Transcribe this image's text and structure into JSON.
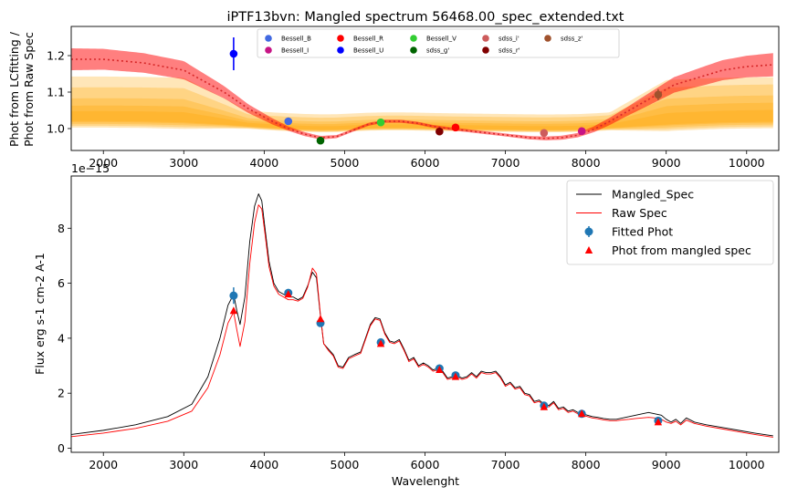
{
  "chart_data": [
    {
      "type": "line",
      "title": "iPTF13bvn: Mangled spectrum 56468.00_spec_extended.txt",
      "ylabel_lines": [
        "Phot from LCfitting /",
        "Phot from Raw Spec"
      ],
      "xlabel": "",
      "xlim": [
        1600,
        10400
      ],
      "ylim": [
        0.94,
        1.28
      ],
      "x_ticks": [
        2000,
        3000,
        4000,
        5000,
        6000,
        7000,
        8000,
        9000,
        10000
      ],
      "y_ticks": [
        1.0,
        1.1,
        1.2
      ],
      "y_tick_labels": [
        "1.0",
        "1.1",
        "1.2"
      ],
      "grid": false,
      "legend_position": "top-center",
      "band_color": "#ffa500",
      "main_band_color": "#ff0000",
      "mean_line_color": "#d62728",
      "mean_curve": {
        "x": [
          1600,
          2000,
          2500,
          3000,
          3500,
          3800,
          4100,
          4300,
          4500,
          4700,
          4900,
          5100,
          5300,
          5500,
          5700,
          5900,
          6100,
          6300,
          6500,
          6700,
          6900,
          7100,
          7300,
          7500,
          7700,
          7900,
          8100,
          8300,
          8500,
          8700,
          8900,
          9100,
          9400,
          9700,
          10000,
          10330
        ],
        "y": [
          1.19,
          1.19,
          1.18,
          1.16,
          1.1,
          1.055,
          1.02,
          1.0,
          0.985,
          0.975,
          0.978,
          0.995,
          1.012,
          1.02,
          1.02,
          1.015,
          1.006,
          1.0,
          0.995,
          0.99,
          0.985,
          0.98,
          0.975,
          0.973,
          0.975,
          0.982,
          0.998,
          1.02,
          1.045,
          1.07,
          1.095,
          1.12,
          1.14,
          1.16,
          1.17,
          1.175
        ]
      },
      "main_band_halfwidth": {
        "x": [
          1600,
          3000,
          3800,
          4300,
          5000,
          6000,
          7000,
          7900,
          8500,
          9000,
          9500,
          10330
        ],
        "w": [
          0.03,
          0.025,
          0.012,
          0.006,
          0.004,
          0.004,
          0.004,
          0.006,
          0.012,
          0.02,
          0.026,
          0.032
        ]
      },
      "spread_bands": [
        {
          "upper_left": 1.12,
          "lower_left": 0.98,
          "upper_right": 1.12,
          "lower_right": 0.98
        },
        {
          "upper_left": 1.09,
          "lower_left": 0.985,
          "upper_right": 1.1,
          "lower_right": 0.985
        },
        {
          "upper_left": 1.06,
          "lower_left": 0.99,
          "upper_right": 1.07,
          "lower_right": 0.99
        },
        {
          "upper_left": 1.04,
          "lower_left": 0.995,
          "upper_right": 1.05,
          "lower_right": 0.995
        },
        {
          "upper_left": 1.025,
          "lower_left": 0.998,
          "upper_right": 1.03,
          "lower_right": 0.998
        }
      ],
      "points": [
        {
          "name": "Bessell_B",
          "x": 4300,
          "y": 1.02,
          "color": "#4169e1"
        },
        {
          "name": "Bessell_I",
          "x": 7950,
          "y": 0.993,
          "color": "#c71585"
        },
        {
          "name": "Bessell_R",
          "x": 6380,
          "y": 1.003,
          "color": "#ff0000"
        },
        {
          "name": "Bessell_U",
          "x": 3620,
          "y": 1.205,
          "color": "#0000ff",
          "err": 0.045
        },
        {
          "name": "Bessell_V",
          "x": 5450,
          "y": 1.017,
          "color": "#32cd32"
        },
        {
          "name": "sdss_g'",
          "x": 4700,
          "y": 0.967,
          "color": "#006400"
        },
        {
          "name": "sdss_i'",
          "x": 7480,
          "y": 0.988,
          "color": "#cd5c5c"
        },
        {
          "name": "sdss_r'",
          "x": 6180,
          "y": 0.992,
          "color": "#800000"
        },
        {
          "name": "sdss_z'",
          "x": 8900,
          "y": 1.093,
          "color": "#a0522d",
          "err": 0.015
        }
      ],
      "legend_entries": [
        {
          "label": "Bessell_B",
          "color": "#4169e1"
        },
        {
          "label": "Bessell_R",
          "color": "#ff0000"
        },
        {
          "label": "Bessell_V",
          "color": "#32cd32"
        },
        {
          "label": "sdss_i'",
          "color": "#cd5c5c"
        },
        {
          "label": "sdss_z'",
          "color": "#a0522d"
        },
        {
          "label": "Bessell_I",
          "color": "#c71585"
        },
        {
          "label": "Bessell_U",
          "color": "#0000ff"
        },
        {
          "label": "sdss_g'",
          "color": "#006400"
        },
        {
          "label": "sdss_r'",
          "color": "#800000"
        }
      ]
    },
    {
      "type": "line",
      "title": "",
      "xlabel": "Wavelenght",
      "ylabel": "Flux erg s-1 cm-2 A-1",
      "offset_text": "1e−15",
      "xlim": [
        1600,
        10400
      ],
      "ylim": [
        -0.15,
        9.9
      ],
      "x_ticks": [
        2000,
        3000,
        4000,
        5000,
        6000,
        7000,
        8000,
        9000,
        10000
      ],
      "y_ticks": [
        0,
        2,
        4,
        6,
        8
      ],
      "grid": false,
      "legend_position": "top-right",
      "series": [
        {
          "name": "Mangled_Spec",
          "color": "#000000",
          "x": [
            1600,
            2000,
            2400,
            2800,
            3100,
            3300,
            3450,
            3550,
            3620,
            3660,
            3700,
            3760,
            3820,
            3880,
            3930,
            3970,
            4010,
            4060,
            4120,
            4180,
            4240,
            4300,
            4360,
            4420,
            4480,
            4540,
            4600,
            4650,
            4700,
            4740,
            4800,
            4860,
            4920,
            4980,
            5050,
            5120,
            5200,
            5260,
            5320,
            5380,
            5440,
            5500,
            5560,
            5620,
            5680,
            5740,
            5800,
            5860,
            5920,
            5980,
            6040,
            6100,
            6160,
            6220,
            6280,
            6340,
            6400,
            6460,
            6520,
            6580,
            6640,
            6700,
            6760,
            6820,
            6880,
            6940,
            7000,
            7060,
            7120,
            7180,
            7240,
            7300,
            7360,
            7420,
            7480,
            7540,
            7600,
            7660,
            7720,
            7780,
            7840,
            7900,
            7960,
            8020,
            8080,
            8150,
            8220,
            8300,
            8380,
            8460,
            8540,
            8620,
            8700,
            8780,
            8860,
            8940,
            9000,
            9060,
            9120,
            9180,
            9250,
            9350,
            9500,
            9700,
            9900,
            10100,
            10330
          ],
          "y": [
            0.5,
            0.65,
            0.85,
            1.15,
            1.6,
            2.6,
            4.0,
            5.2,
            5.6,
            5.0,
            4.5,
            5.5,
            7.5,
            8.8,
            9.25,
            9.0,
            8.0,
            6.8,
            6.0,
            5.7,
            5.6,
            5.5,
            5.5,
            5.4,
            5.5,
            5.9,
            6.4,
            6.2,
            4.8,
            3.8,
            3.6,
            3.4,
            3.0,
            2.95,
            3.3,
            3.4,
            3.5,
            4.0,
            4.5,
            4.75,
            4.7,
            4.2,
            3.9,
            3.85,
            3.95,
            3.6,
            3.2,
            3.3,
            3.0,
            3.1,
            3.0,
            2.85,
            2.9,
            2.8,
            2.55,
            2.6,
            2.65,
            2.55,
            2.6,
            2.75,
            2.6,
            2.8,
            2.75,
            2.75,
            2.8,
            2.6,
            2.3,
            2.4,
            2.2,
            2.25,
            2.0,
            1.95,
            1.7,
            1.75,
            1.6,
            1.55,
            1.7,
            1.45,
            1.5,
            1.35,
            1.4,
            1.3,
            1.25,
            1.2,
            1.15,
            1.12,
            1.08,
            1.05,
            1.05,
            1.1,
            1.15,
            1.2,
            1.25,
            1.3,
            1.25,
            1.2,
            1.05,
            0.95,
            1.05,
            0.9,
            1.1,
            0.95,
            0.85,
            0.75,
            0.65,
            0.55,
            0.45
          ]
        },
        {
          "name": "Raw Spec",
          "color": "#ff0000",
          "x": [
            1600,
            2000,
            2400,
            2800,
            3100,
            3300,
            3450,
            3550,
            3620,
            3660,
            3700,
            3760,
            3820,
            3880,
            3930,
            3970,
            4010,
            4060,
            4120,
            4180,
            4240,
            4300,
            4360,
            4420,
            4480,
            4540,
            4600,
            4650,
            4700,
            4740,
            4800,
            4860,
            4920,
            4980,
            5050,
            5120,
            5200,
            5260,
            5320,
            5380,
            5440,
            5500,
            5560,
            5620,
            5680,
            5740,
            5800,
            5860,
            5920,
            5980,
            6040,
            6100,
            6160,
            6220,
            6280,
            6340,
            6400,
            6460,
            6520,
            6580,
            6640,
            6700,
            6760,
            6820,
            6880,
            6940,
            7000,
            7060,
            7120,
            7180,
            7240,
            7300,
            7360,
            7420,
            7480,
            7540,
            7600,
            7660,
            7720,
            7780,
            7840,
            7900,
            7960,
            8020,
            8080,
            8150,
            8220,
            8300,
            8380,
            8460,
            8540,
            8620,
            8700,
            8780,
            8860,
            8940,
            9000,
            9060,
            9120,
            9180,
            9250,
            9350,
            9500,
            9700,
            9900,
            10100,
            10330
          ],
          "y": [
            0.42,
            0.55,
            0.72,
            0.98,
            1.35,
            2.2,
            3.4,
            4.55,
            4.95,
            4.3,
            3.7,
            4.6,
            6.7,
            8.2,
            8.85,
            8.7,
            7.8,
            6.6,
            5.9,
            5.6,
            5.5,
            5.4,
            5.4,
            5.35,
            5.45,
            5.85,
            6.55,
            6.35,
            4.85,
            3.8,
            3.55,
            3.35,
            2.95,
            2.9,
            3.25,
            3.35,
            3.45,
            3.95,
            4.45,
            4.7,
            4.65,
            4.15,
            3.85,
            3.8,
            3.9,
            3.55,
            3.15,
            3.25,
            2.95,
            3.05,
            2.95,
            2.8,
            2.85,
            2.75,
            2.5,
            2.55,
            2.6,
            2.5,
            2.55,
            2.7,
            2.55,
            2.75,
            2.7,
            2.7,
            2.75,
            2.55,
            2.25,
            2.35,
            2.15,
            2.2,
            1.95,
            1.9,
            1.65,
            1.7,
            1.55,
            1.5,
            1.65,
            1.4,
            1.45,
            1.3,
            1.35,
            1.25,
            1.2,
            1.15,
            1.1,
            1.07,
            1.03,
            1.0,
            1.0,
            1.03,
            1.05,
            1.08,
            1.1,
            1.12,
            1.1,
            1.05,
            0.95,
            0.9,
            0.98,
            0.85,
            1.02,
            0.9,
            0.8,
            0.7,
            0.6,
            0.5,
            0.4
          ]
        }
      ],
      "fitted_phot": {
        "name": "Fitted Phot",
        "color": "#1f77b4",
        "x": [
          3620,
          4300,
          4700,
          5450,
          6180,
          6380,
          7480,
          7950,
          8900
        ],
        "y": [
          5.55,
          5.65,
          4.55,
          3.85,
          2.9,
          2.65,
          1.55,
          1.25,
          1.0
        ],
        "err": [
          0.3,
          0.1,
          0.1,
          0.05,
          0.05,
          0.05,
          0.05,
          0.05,
          0.05
        ]
      },
      "mangled_phot": {
        "name": "Phot from mangled spec",
        "color": "#ff0000",
        "x": [
          3620,
          4300,
          4700,
          5450,
          6180,
          6380,
          7480,
          7950,
          8900
        ],
        "y": [
          5.0,
          5.6,
          4.7,
          3.8,
          2.85,
          2.6,
          1.5,
          1.25,
          0.95
        ]
      }
    }
  ]
}
